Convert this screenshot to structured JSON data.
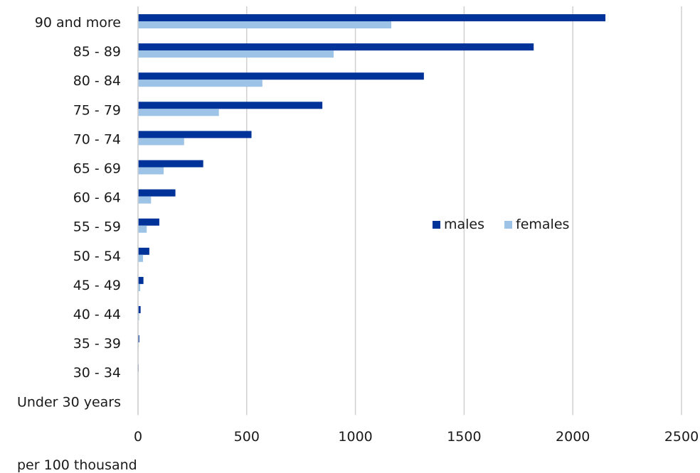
{
  "chart_data": {
    "type": "bar",
    "orientation": "horizontal",
    "categories": [
      "90 and more",
      "85 - 89",
      "80 - 84",
      "75 - 79",
      "70 - 74",
      "65 - 69",
      "60 - 64",
      "55 - 59",
      "50 - 54",
      "45 - 49",
      "40 - 44",
      "35 - 39",
      "30 - 34",
      "Under 30 years"
    ],
    "series": [
      {
        "name": "males",
        "color": "#003399",
        "values": [
          2150,
          1820,
          1315,
          848,
          522,
          300,
          172,
          98,
          52,
          25,
          12,
          6,
          3,
          0
        ]
      },
      {
        "name": "females",
        "color": "#9dc3e6",
        "values": [
          1165,
          900,
          572,
          372,
          212,
          118,
          60,
          40,
          23,
          10,
          5,
          3,
          2,
          0
        ]
      }
    ],
    "xlim": [
      0,
      2500
    ],
    "xticks": [
      0,
      500,
      1000,
      1500,
      2000,
      2500
    ],
    "xlabel": "per 100 thousand",
    "grid": "vertical",
    "legend_position": "right-center"
  }
}
